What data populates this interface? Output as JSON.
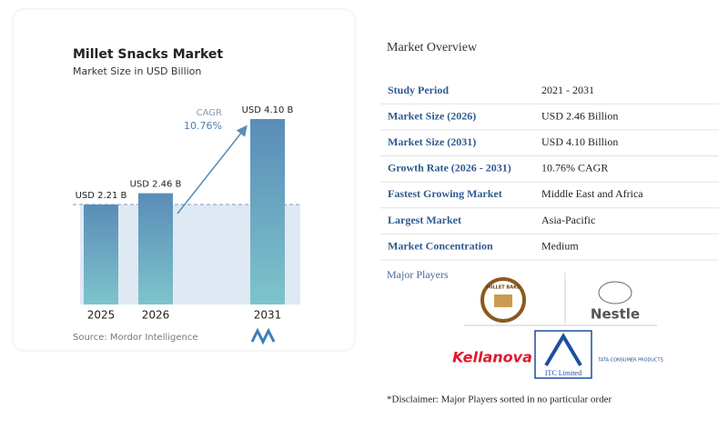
{
  "chart_data": {
    "type": "bar",
    "title": "Millet Snacks Market",
    "subtitle": "Market Size in USD Billion",
    "categories": [
      "2025",
      "2026",
      "2031"
    ],
    "values": [
      2.21,
      2.46,
      4.1
    ],
    "value_labels": [
      "USD 2.21 B",
      "USD 2.46 B",
      "USD 4.10 B"
    ],
    "annotation": {
      "label": "CAGR",
      "value": "10.76%"
    },
    "source": "Source: Mordor Intelligence"
  },
  "overview": {
    "title": "Market Overview",
    "rows": [
      [
        "Study Period",
        "2021 - 2031"
      ],
      [
        "Market Size (2026)",
        "USD 2.46 Billion"
      ],
      [
        "Market Size (2031)",
        "USD 4.10 Billion"
      ],
      [
        "Growth Rate (2026 - 2031)",
        "10.76% CAGR"
      ],
      [
        "Fastest Growing Market",
        "Middle East and Africa"
      ],
      [
        "Largest Market",
        "Asia-Pacific"
      ],
      [
        "Market Concentration",
        "Medium"
      ]
    ]
  },
  "major_players": {
    "title": "Major Players",
    "logos": [
      "MILLET BAKE",
      "Nestle",
      "Kellanova",
      "ITC Limited",
      "TATA CONSUMER PRODUCTS"
    ],
    "disclaimer": "*Disclaimer: Major Players sorted in no particular order"
  }
}
